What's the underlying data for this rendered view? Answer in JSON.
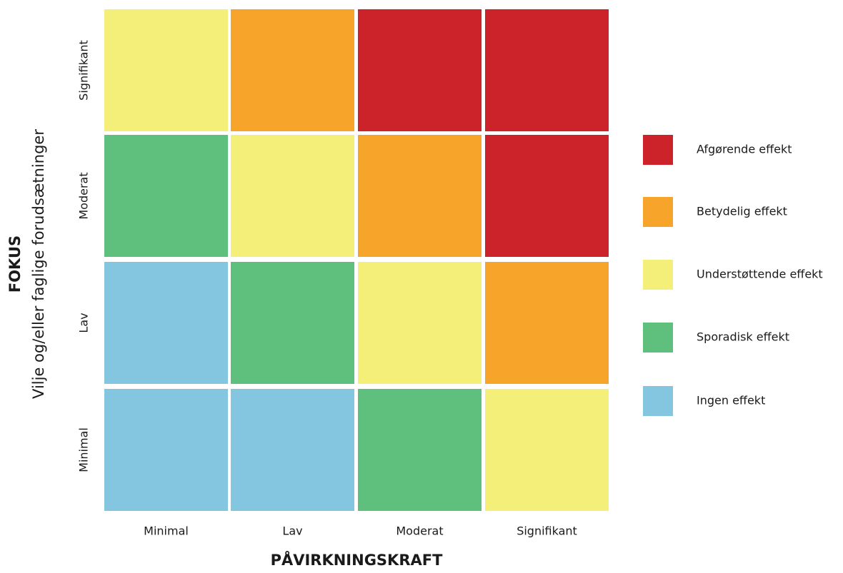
{
  "y_axis": {
    "title": "FOKUS",
    "subtitle": "Vilje og/eller faglige forudsætninger",
    "labels": [
      "Signifikant",
      "Moderat",
      "Lav",
      "Minimal"
    ]
  },
  "x_axis": {
    "title": "PÅVIRKNINGSKRAFT",
    "labels": [
      "Minimal",
      "Lav",
      "Moderat",
      "Signifikant"
    ]
  },
  "cells": [
    [
      "#f3ef78",
      "#f7a42b",
      "#cc2229",
      "#cc2229"
    ],
    [
      "#5fc07d",
      "#f3ef78",
      "#f7a42b",
      "#cc2229"
    ],
    [
      "#84c5e0",
      "#5fc07d",
      "#f3ef78",
      "#f7a42b"
    ],
    [
      "#84c5e0",
      "#84c5e0",
      "#5fc07d",
      "#f3ef78"
    ]
  ],
  "legend": [
    {
      "label": "Afgørende effekt",
      "color": "#cc2229"
    },
    {
      "label": "Betydelig effekt",
      "color": "#f7a42b"
    },
    {
      "label": "Understøttende effekt",
      "color": "#f3ef78"
    },
    {
      "label": "Sporadisk effekt",
      "color": "#5fc07d"
    },
    {
      "label": "Ingen effekt",
      "color": "#84c5e0"
    }
  ]
}
